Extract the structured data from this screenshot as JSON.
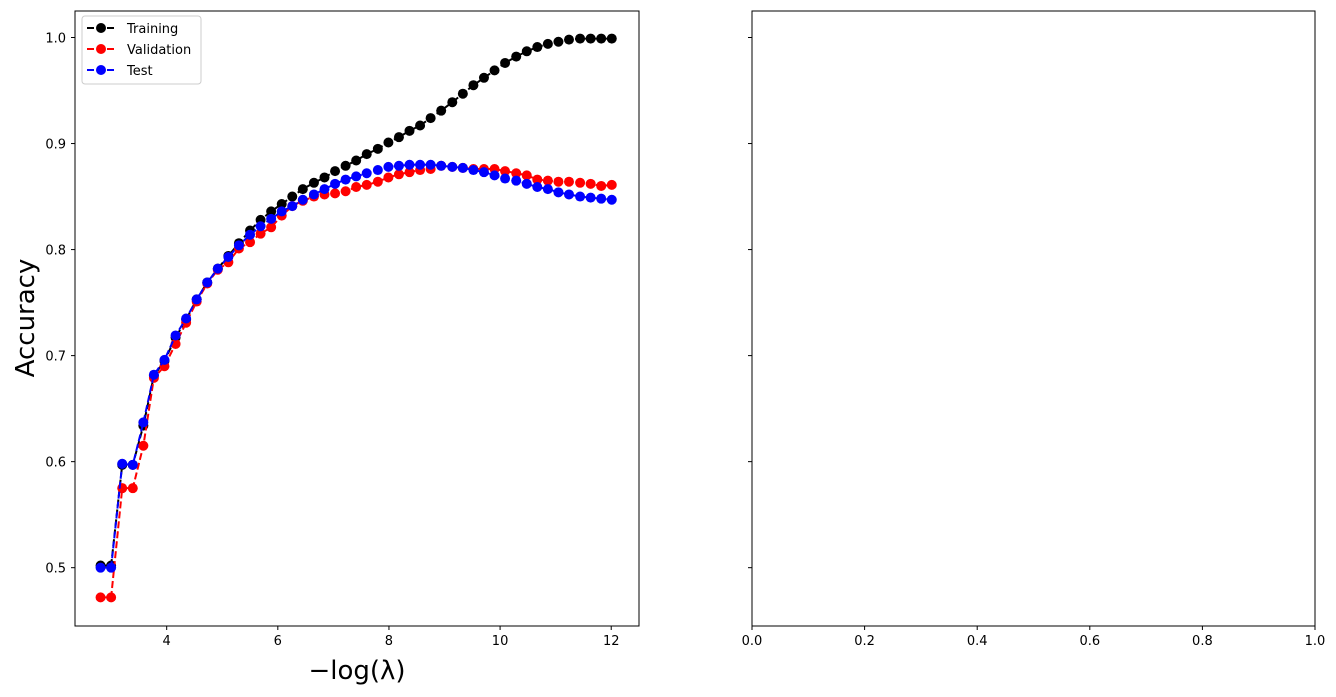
{
  "chart_data": [
    {
      "type": "line",
      "title": "",
      "xlabel": "−log(λ)",
      "ylabel": "Accuracy",
      "xlim": [
        2.35,
        12.5
      ],
      "ylim": [
        0.445,
        1.025
      ],
      "xticks": [
        4,
        6,
        8,
        10,
        12
      ],
      "xtick_labels": [
        "4",
        "6",
        "8",
        "10",
        "12"
      ],
      "yticks": [
        0.5,
        0.6,
        0.7,
        0.8,
        0.9,
        1.0
      ],
      "ytick_labels": [
        "0.5",
        "0.6",
        "0.7",
        "0.8",
        "0.9",
        "1.0"
      ],
      "grid": false,
      "legend_position": "top-left",
      "x": [
        2.81,
        3.0,
        3.2,
        3.39,
        3.58,
        3.77,
        3.96,
        4.16,
        4.35,
        4.54,
        4.73,
        4.92,
        5.11,
        5.3,
        5.5,
        5.69,
        5.88,
        6.07,
        6.26,
        6.45,
        6.65,
        6.84,
        7.03,
        7.22,
        7.41,
        7.6,
        7.8,
        7.99,
        8.18,
        8.37,
        8.56,
        8.75,
        8.94,
        9.14,
        9.33,
        9.52,
        9.71,
        9.9,
        10.09,
        10.29,
        10.48,
        10.67,
        10.86,
        11.05,
        11.24,
        11.44,
        11.63,
        11.82,
        12.01
      ],
      "series": [
        {
          "name": "Training",
          "color": "#000000",
          "values": [
            0.502,
            0.502,
            0.597,
            0.597,
            0.634,
            0.681,
            0.695,
            0.717,
            0.734,
            0.753,
            0.769,
            0.782,
            0.794,
            0.806,
            0.818,
            0.828,
            0.836,
            0.843,
            0.85,
            0.857,
            0.863,
            0.868,
            0.874,
            0.879,
            0.884,
            0.89,
            0.895,
            0.901,
            0.906,
            0.912,
            0.917,
            0.924,
            0.931,
            0.939,
            0.947,
            0.955,
            0.962,
            0.969,
            0.976,
            0.982,
            0.987,
            0.991,
            0.994,
            0.996,
            0.998,
            0.999,
            0.999,
            0.999,
            0.999
          ]
        },
        {
          "name": "Validation",
          "color": "#ff0000",
          "values": [
            0.472,
            0.472,
            0.575,
            0.575,
            0.615,
            0.679,
            0.69,
            0.711,
            0.731,
            0.751,
            0.768,
            0.781,
            0.788,
            0.801,
            0.807,
            0.815,
            0.821,
            0.832,
            0.841,
            0.846,
            0.85,
            0.852,
            0.853,
            0.855,
            0.859,
            0.861,
            0.864,
            0.868,
            0.871,
            0.873,
            0.875,
            0.876,
            0.879,
            0.878,
            0.877,
            0.876,
            0.876,
            0.876,
            0.874,
            0.872,
            0.87,
            0.866,
            0.865,
            0.864,
            0.864,
            0.863,
            0.862,
            0.86,
            0.861
          ]
        },
        {
          "name": "Test",
          "color": "#0000ff",
          "values": [
            0.5,
            0.5,
            0.598,
            0.597,
            0.637,
            0.682,
            0.696,
            0.719,
            0.735,
            0.753,
            0.769,
            0.782,
            0.793,
            0.804,
            0.814,
            0.822,
            0.829,
            0.836,
            0.841,
            0.847,
            0.852,
            0.857,
            0.862,
            0.866,
            0.869,
            0.872,
            0.875,
            0.878,
            0.879,
            0.88,
            0.88,
            0.88,
            0.879,
            0.878,
            0.877,
            0.875,
            0.873,
            0.87,
            0.867,
            0.865,
            0.862,
            0.859,
            0.857,
            0.854,
            0.852,
            0.85,
            0.849,
            0.848,
            0.847
          ]
        }
      ]
    },
    {
      "type": "line",
      "title": "",
      "xlabel": "",
      "ylabel": "",
      "xlim": [
        0.0,
        1.0
      ],
      "ylim": [
        0.445,
        1.025
      ],
      "xticks": [
        0.0,
        0.2,
        0.4,
        0.6,
        0.8,
        1.0
      ],
      "xtick_labels": [
        "0.0",
        "0.2",
        "0.4",
        "0.6",
        "0.8",
        "1.0"
      ],
      "yticks": [
        0.5,
        0.6,
        0.7,
        0.8,
        0.9,
        1.0
      ],
      "ytick_labels": [
        "",
        "",
        "",
        "",
        "",
        ""
      ],
      "grid": false,
      "series": []
    }
  ]
}
